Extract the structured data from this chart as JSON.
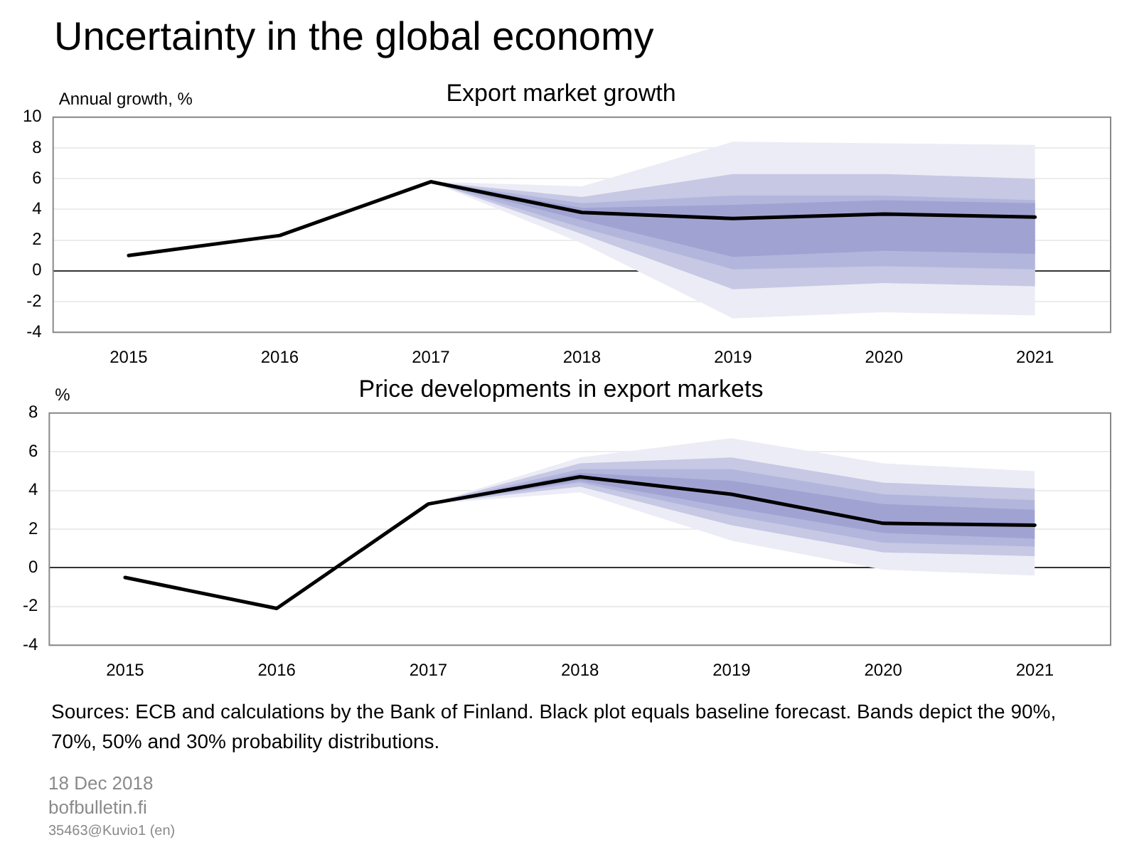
{
  "chart_data": [
    {
      "type": "line",
      "title": "Uncertainty in the global economy",
      "subtitle": "Export market growth",
      "ylabel": "Annual growth, %",
      "categories": [
        "2015",
        "2016",
        "2017",
        "2018",
        "2019",
        "2020",
        "2021"
      ],
      "series": [
        {
          "color": "#000000",
          "values": [
            1.0,
            2.3,
            5.8,
            3.8,
            3.4,
            3.7,
            3.5
          ]
        },
        {
          "color": "#ececf6",
          "values": [
            null,
            null,
            null,
            null,
            null,
            null,
            null
          ],
          "lower": [
            null,
            null,
            5.8,
            1.8,
            -3.1,
            -2.7,
            -2.9
          ],
          "upper": [
            null,
            null,
            5.8,
            5.5,
            8.4,
            8.3,
            8.2
          ]
        },
        {
          "color": "#c6c8e4",
          "values": [
            null,
            null,
            null,
            null,
            null,
            null,
            null
          ],
          "lower": [
            null,
            null,
            5.8,
            2.4,
            -1.2,
            -0.8,
            -1.0
          ],
          "upper": [
            null,
            null,
            5.8,
            4.8,
            6.3,
            6.3,
            6.0
          ]
        },
        {
          "color": "#b3b6dc",
          "values": [
            null,
            null,
            null,
            null,
            null,
            null,
            null
          ],
          "lower": [
            null,
            null,
            5.8,
            2.8,
            0.1,
            0.3,
            0.1
          ],
          "upper": [
            null,
            null,
            5.8,
            4.4,
            4.9,
            4.9,
            4.6
          ]
        },
        {
          "color": "#a0a3d2",
          "values": [
            null,
            null,
            null,
            null,
            null,
            null,
            null
          ],
          "lower": [
            null,
            null,
            5.8,
            3.3,
            0.9,
            1.3,
            1.1
          ],
          "upper": [
            null,
            null,
            5.8,
            4.1,
            4.3,
            4.6,
            4.4
          ]
        }
      ],
      "ylim": [
        -4,
        10
      ],
      "yticks": [
        -4,
        -2,
        0,
        2,
        4,
        6,
        8,
        10
      ],
      "grid": "y",
      "legend": false,
      "marker": "none",
      "line_style": "solid"
    },
    {
      "type": "line",
      "title": "Price developments in export markets",
      "ylabel": "%",
      "categories": [
        "2015",
        "2016",
        "2017",
        "2018",
        "2019",
        "2020",
        "2021"
      ],
      "series": [
        {
          "color": "#000000",
          "values": [
            -0.5,
            -2.1,
            3.3,
            4.7,
            3.8,
            2.3,
            2.2
          ]
        },
        {
          "color": "#ececf6",
          "values": [
            null,
            null,
            null,
            null,
            null,
            null,
            null
          ],
          "lower": [
            null,
            null,
            3.3,
            3.9,
            1.4,
            -0.1,
            -0.4
          ],
          "upper": [
            null,
            null,
            3.3,
            5.7,
            6.7,
            5.4,
            5.0
          ]
        },
        {
          "color": "#c6c8e4",
          "values": [
            null,
            null,
            null,
            null,
            null,
            null,
            null
          ],
          "lower": [
            null,
            null,
            3.3,
            4.2,
            2.2,
            0.8,
            0.6
          ],
          "upper": [
            null,
            null,
            3.3,
            5.4,
            5.7,
            4.4,
            4.1
          ]
        },
        {
          "color": "#b3b6dc",
          "values": [
            null,
            null,
            null,
            null,
            null,
            null,
            null
          ],
          "lower": [
            null,
            null,
            3.3,
            4.4,
            2.7,
            1.3,
            1.1
          ],
          "upper": [
            null,
            null,
            3.3,
            5.1,
            5.1,
            3.8,
            3.5
          ]
        },
        {
          "color": "#a0a3d2",
          "values": [
            null,
            null,
            null,
            null,
            null,
            null,
            null
          ],
          "lower": [
            null,
            null,
            3.3,
            4.5,
            3.1,
            1.8,
            1.5
          ],
          "upper": [
            null,
            null,
            3.3,
            4.9,
            4.5,
            3.3,
            3.0
          ]
        }
      ],
      "ylim": [
        -4,
        8
      ],
      "yticks": [
        -4,
        -2,
        0,
        2,
        4,
        6,
        8
      ],
      "grid": "y",
      "legend": false,
      "marker": "none",
      "line_style": "solid",
      "annotations": [
        "Sources: ECB and calculations by the Bank of Finland. Black plot equals baseline forecast. Bands depict the 90%, 70%, 50% and 30% probability distributions.",
        "18 Dec 2018",
        "bofbulletin.fi",
        "35463@Kuvio1 (en)"
      ]
    }
  ]
}
